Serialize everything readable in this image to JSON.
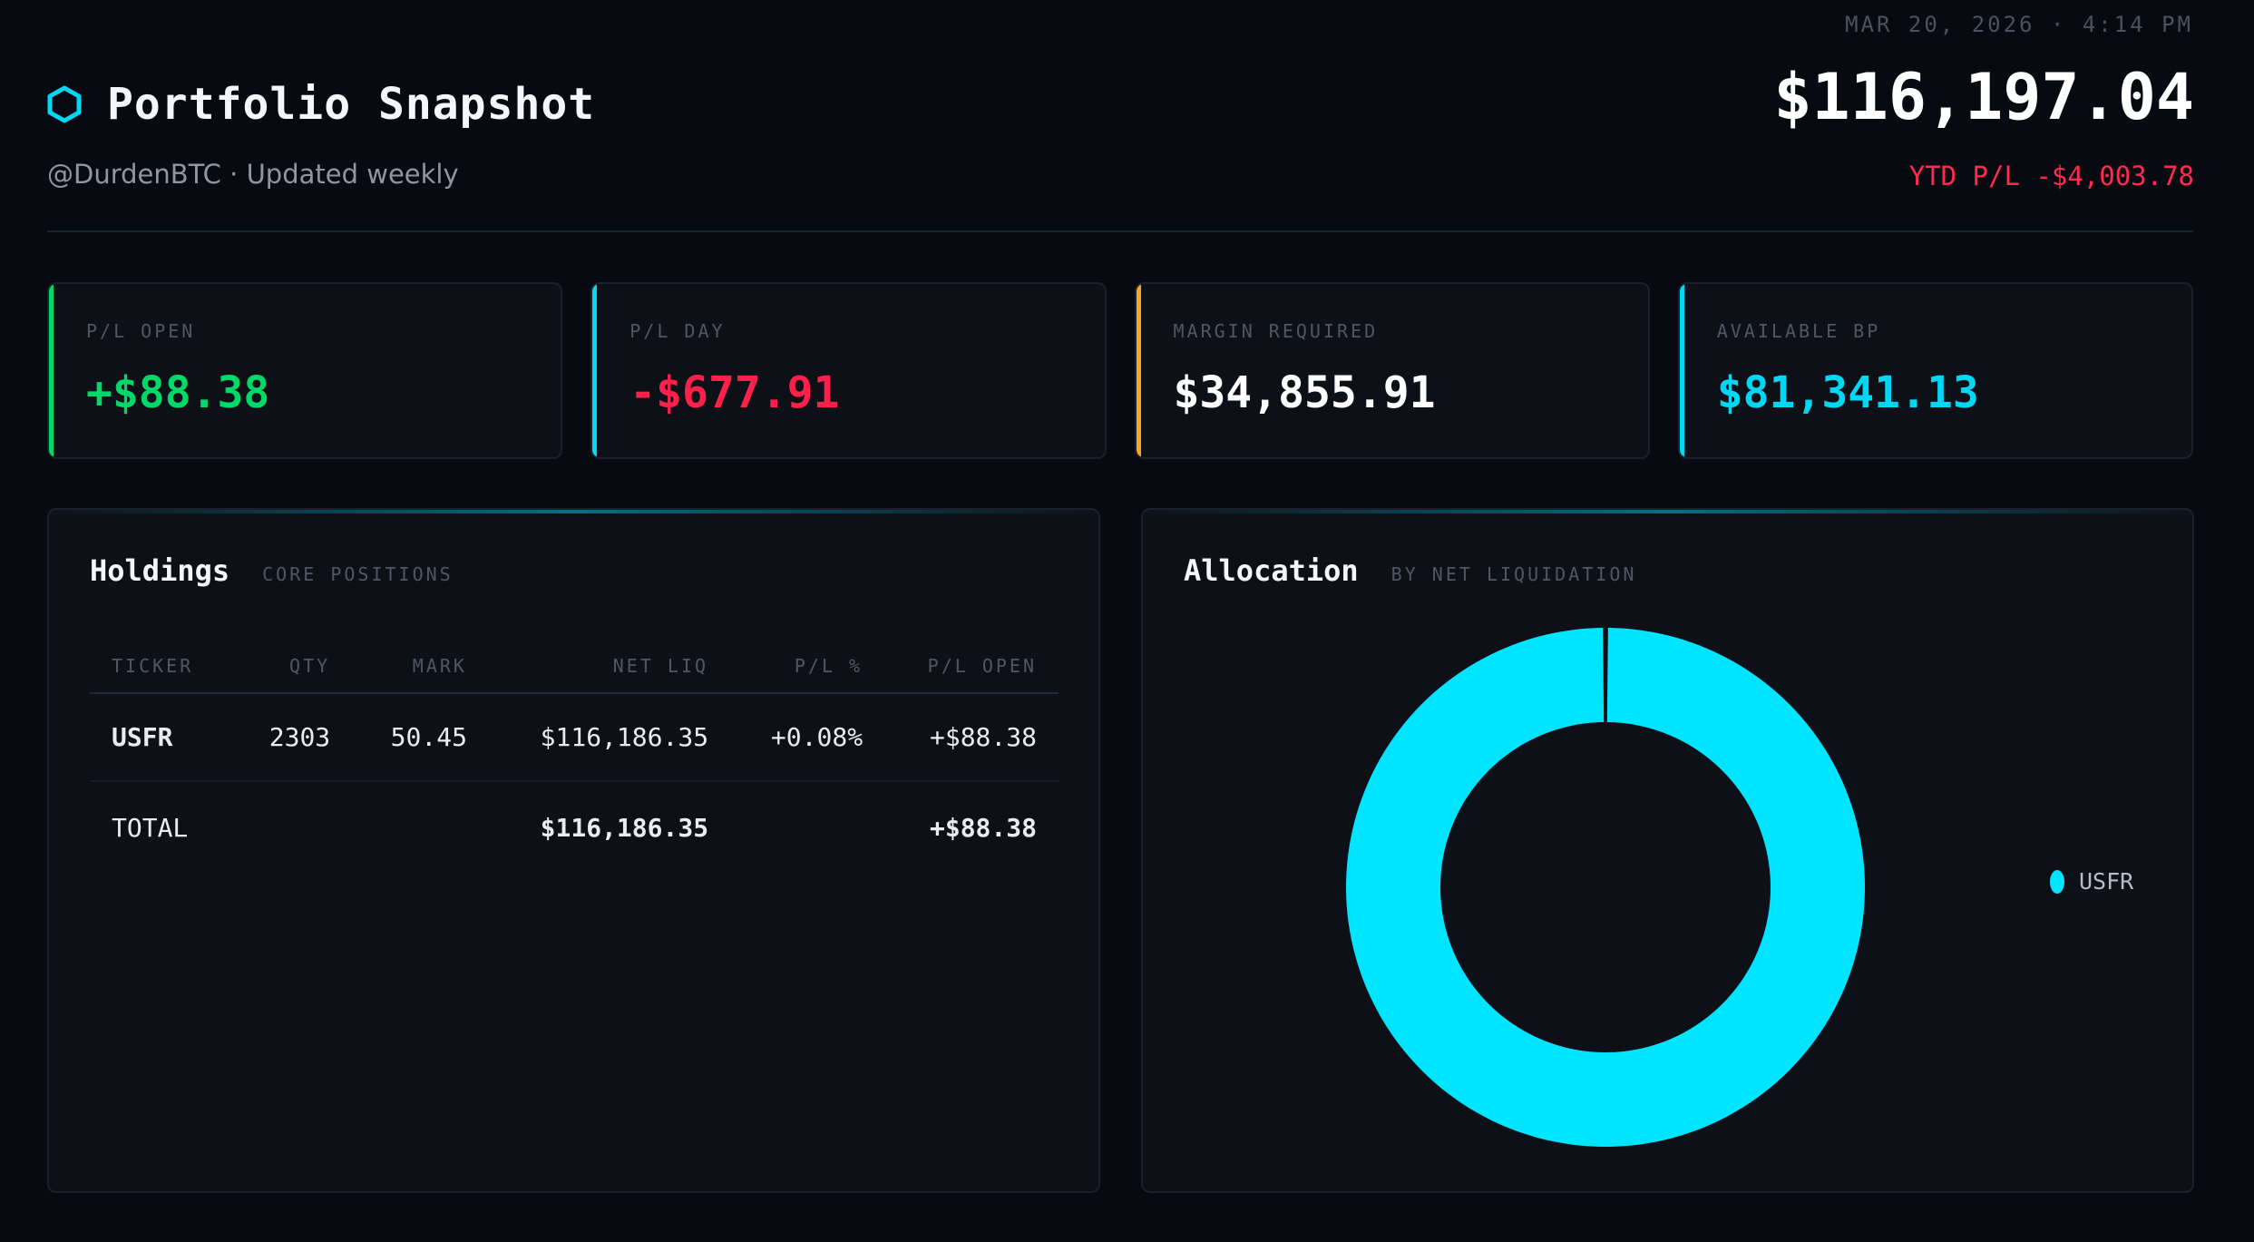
{
  "header": {
    "timestamp": "MAR 20, 2026 · 4:14 PM",
    "title": "Portfolio Snapshot",
    "title_icon": "hexagon-icon",
    "subtitle": "@DurdenBTC · Updated weekly",
    "total_value": "$116,197.04",
    "ytd": "YTD P/L -$4,003.78"
  },
  "stats": [
    {
      "label": "P/L OPEN",
      "value": "+$88.38",
      "accent": "#00d86a",
      "value_color": "#00d86a"
    },
    {
      "label": "P/L DAY",
      "value": "-$677.91",
      "accent": "#00d7f2",
      "value_color": "#ff1f4b"
    },
    {
      "label": "MARGIN REQUIRED",
      "value": "$34,855.91",
      "accent": "#f5a623",
      "value_color": "#ffffff"
    },
    {
      "label": "AVAILABLE BP",
      "value": "$81,341.13",
      "accent": "#00d7f2",
      "value_color": "#00d7f2"
    }
  ],
  "holdings": {
    "title": "Holdings",
    "subtitle": "CORE POSITIONS",
    "columns": [
      "TICKER",
      "QTY",
      "MARK",
      "NET LIQ",
      "P/L %",
      "P/L OPEN"
    ],
    "rows": [
      {
        "ticker": "USFR",
        "qty": "2303",
        "mark": "50.45",
        "net_liq": "$116,186.35",
        "pl_pct": "+0.08%",
        "pl_open": "+$88.38"
      }
    ],
    "total": {
      "label": "TOTAL",
      "net_liq": "$116,186.35",
      "pl_open": "+$88.38"
    }
  },
  "allocation": {
    "title": "Allocation",
    "subtitle": "BY NET LIQUIDATION",
    "legend": [
      {
        "name": "USFR",
        "color": "#00e5ff"
      }
    ]
  },
  "chart_data": {
    "type": "pie",
    "categories": [
      "USFR"
    ],
    "values": [
      100
    ],
    "colors": [
      "#00e5ff"
    ],
    "donut": true,
    "legend": "right"
  },
  "colors": {
    "background": "#070a10",
    "panel": "#0d1017",
    "accent": "#00e5ff",
    "positive": "#00d86a",
    "negative": "#ff1f4b"
  }
}
